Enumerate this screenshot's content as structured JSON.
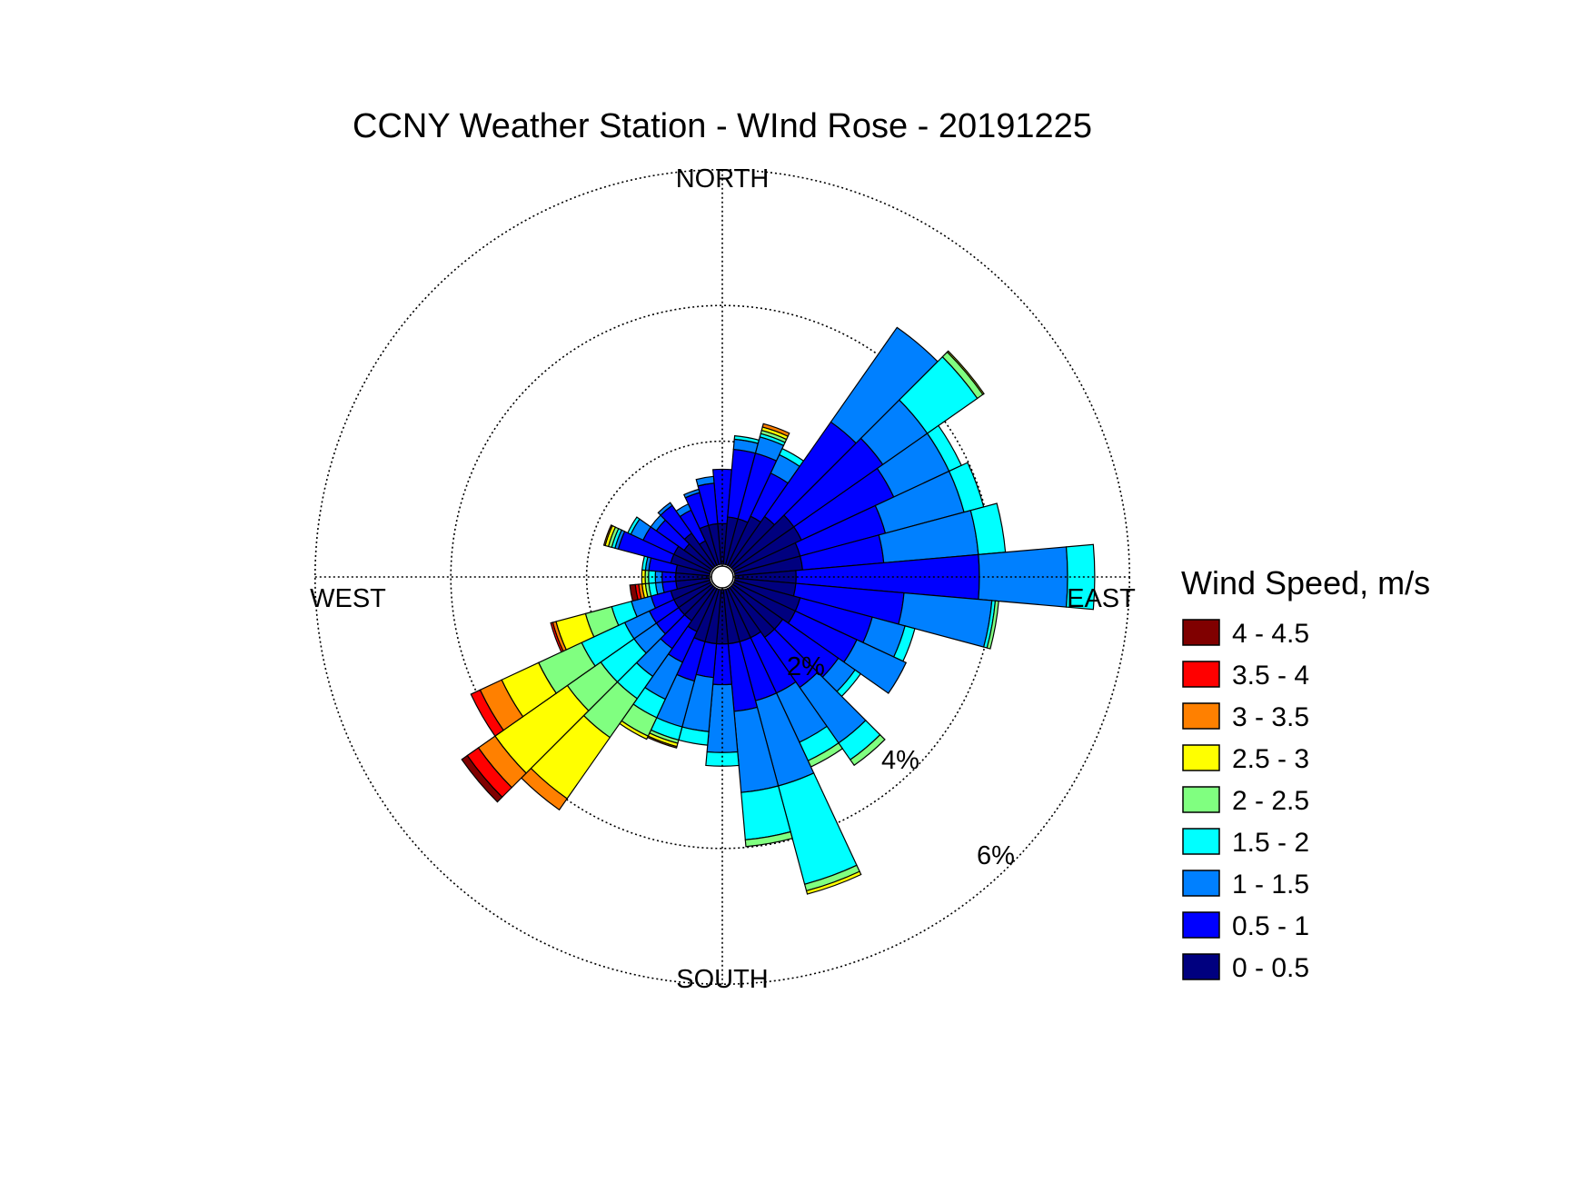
{
  "chart_data": {
    "type": "wind_rose",
    "title": "CCNY Weather Station - WInd Rose - 20191225",
    "directions_labels": {
      "north": "NORTH",
      "east": "EAST",
      "south": "SOUTH",
      "west": "WEST"
    },
    "ring_labels": [
      "2%",
      "4%",
      "6%"
    ],
    "rings_percent": [
      2,
      4,
      6
    ],
    "legend_title": "Wind Speed, m/s",
    "bins": [
      {
        "label": "0 - 0.5",
        "color": "#00007f"
      },
      {
        "label": "0.5 - 1",
        "color": "#0000ff"
      },
      {
        "label": "1 - 1.5",
        "color": "#0080ff"
      },
      {
        "label": "1.5 - 2",
        "color": "#00ffff"
      },
      {
        "label": "2 - 2.5",
        "color": "#80ff80"
      },
      {
        "label": "2.5 - 3",
        "color": "#ffff00"
      },
      {
        "label": "3 - 3.5",
        "color": "#ff8000"
      },
      {
        "label": "3.5 - 4",
        "color": "#ff0000"
      },
      {
        "label": "4 - 4.5",
        "color": "#800000"
      }
    ],
    "sector_width_deg": 10,
    "sectors": [
      {
        "dir": 0,
        "cumulative_percent": [
          0.6,
          1.4
        ]
      },
      {
        "dir": 10,
        "cumulative_percent": [
          0.7,
          1.7,
          1.85,
          1.9
        ]
      },
      {
        "dir": 20,
        "cumulative_percent": [
          0.7,
          1.7,
          1.95,
          2.0,
          2.05,
          2.1,
          2.15
        ]
      },
      {
        "dir": 30,
        "cumulative_percent": [
          0.8,
          1.5,
          1.8,
          1.9
        ]
      },
      {
        "dir": 40,
        "cumulative_percent": [
          0.9,
          2.6,
          4.3
        ]
      },
      {
        "dir": 50,
        "cumulative_percent": [
          1.1,
          2.7,
          3.5,
          4.4,
          4.5,
          4.52
        ]
      },
      {
        "dir": 60,
        "cumulative_percent": [
          1.1,
          2.6,
          3.5,
          3.7
        ]
      },
      {
        "dir": 70,
        "cumulative_percent": [
          1.0,
          2.3,
          3.5,
          3.8
        ]
      },
      {
        "dir": 80,
        "cumulative_percent": [
          1.0,
          2.2,
          3.6,
          4.0
        ]
      },
      {
        "dir": 90,
        "cumulative_percent": [
          0.9,
          3.6,
          4.9,
          5.3
        ]
      },
      {
        "dir": 100,
        "cumulative_percent": [
          0.9,
          2.5,
          3.8,
          3.85,
          3.9
        ]
      },
      {
        "dir": 110,
        "cumulative_percent": [
          1.0,
          2.1,
          2.6,
          2.75
        ]
      },
      {
        "dir": 120,
        "cumulative_percent": [
          1.0,
          2.0,
          2.8
        ]
      },
      {
        "dir": 130,
        "cumulative_percent": [
          0.9,
          1.9,
          2.2,
          2.3
        ]
      },
      {
        "dir": 140,
        "cumulative_percent": [
          0.9,
          1.8,
          2.8,
          3.1,
          3.2
        ]
      },
      {
        "dir": 150,
        "cumulative_percent": [
          0.8,
          1.7,
          2.5,
          2.8,
          2.9
        ]
      },
      {
        "dir": 160,
        "cumulative_percent": [
          0.8,
          1.7,
          3.0,
          4.5,
          4.6,
          4.65
        ]
      },
      {
        "dir": 170,
        "cumulative_percent": [
          0.8,
          1.8,
          3.0,
          3.7,
          3.8
        ]
      },
      {
        "dir": 180,
        "cumulative_percent": [
          0.8,
          1.4,
          2.4,
          2.6
        ]
      },
      {
        "dir": 190,
        "cumulative_percent": [
          0.8,
          1.3,
          2.1,
          2.3
        ]
      },
      {
        "dir": 200,
        "cumulative_percent": [
          0.8,
          1.4,
          2.1,
          2.3,
          2.35,
          2.4,
          2.42
        ]
      },
      {
        "dir": 210,
        "cumulative_percent": [
          0.7,
          1.2,
          1.8,
          2.1,
          2.4,
          2.45
        ]
      },
      {
        "dir": 220,
        "cumulative_percent": [
          0.6,
          1.1,
          1.6,
          2.0,
          2.7,
          3.8,
          4.0
        ]
      },
      {
        "dir": 230,
        "cumulative_percent": [
          0.6,
          1.0,
          1.4,
          2.0,
          2.6,
          3.9,
          4.2,
          4.4,
          4.5
        ]
      },
      {
        "dir": 240,
        "cumulative_percent": [
          0.6,
          1.0,
          1.4,
          2.1,
          2.8,
          3.4,
          3.75,
          3.9
        ]
      },
      {
        "dir": 250,
        "cumulative_percent": [
          0.6,
          0.9,
          1.2,
          1.5,
          1.9,
          2.35,
          2.4,
          2.43
        ]
      },
      {
        "dir": 260,
        "cumulative_percent": [
          0.5,
          0.7,
          0.8,
          0.9,
          0.95,
          1.0,
          1.05,
          1.1,
          1.18
        ]
      },
      {
        "dir": 270,
        "cumulative_percent": [
          0.5,
          0.7,
          0.8,
          0.9,
          0.95,
          1.0
        ]
      },
      {
        "dir": 280,
        "cumulative_percent": [
          0.5,
          0.9,
          0.95,
          1.0
        ]
      },
      {
        "dir": 290,
        "cumulative_percent": [
          0.6,
          1.4,
          1.45,
          1.5,
          1.55,
          1.6,
          1.62
        ]
      },
      {
        "dir": 300,
        "cumulative_percent": [
          0.6,
          1.1,
          1.3,
          1.35
        ]
      },
      {
        "dir": 310,
        "cumulative_percent": [
          0.5,
          1.0,
          1.1
        ]
      },
      {
        "dir": 320,
        "cumulative_percent": [
          0.6,
          1.1,
          1.15
        ]
      },
      {
        "dir": 330,
        "cumulative_percent": [
          0.4,
          0.9,
          1.0
        ]
      },
      {
        "dir": 340,
        "cumulative_percent": [
          0.6,
          1.1,
          1.15
        ]
      },
      {
        "dir": 350,
        "cumulative_percent": [
          0.6,
          1.2,
          1.3
        ]
      }
    ]
  }
}
